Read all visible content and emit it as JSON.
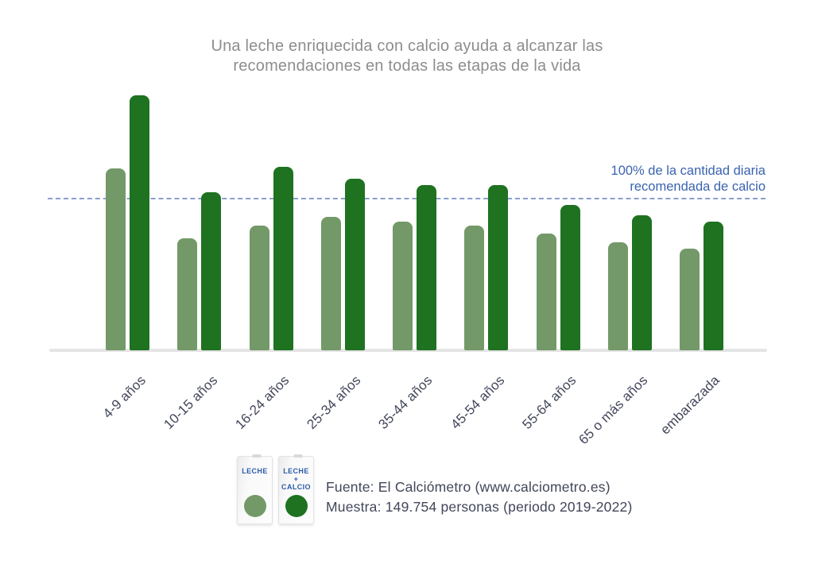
{
  "title": "Una leche enriquecida con calcio ayuda a alcanzar las recomendaciones en todas las etapas de la vida",
  "chart_data": {
    "type": "bar",
    "title": "Una leche enriquecida con calcio ayuda a alcanzar las recomendaciones en todas las etapas de la vida",
    "categories": [
      "4-9 años",
      "10-15 años",
      "16-24 años",
      "25-34 años",
      "35-44 años",
      "45-54 años",
      "55-64 años",
      "65 o más años",
      "embarazada"
    ],
    "series": [
      {
        "name": "Leche",
        "values": [
          120,
          74,
          82,
          88,
          85,
          82,
          77,
          71,
          67
        ]
      },
      {
        "name": "Leche + Calcio",
        "values": [
          168,
          104,
          121,
          113,
          109,
          109,
          96,
          89,
          85
        ]
      }
    ],
    "unit": "% de la cantidad diaria recomendada de calcio",
    "ylim": [
      0,
      175
    ],
    "grid": false,
    "legend_position": "bottom-left",
    "reference_line": {
      "value": 100,
      "label_lines": [
        "100% de la cantidad diaria",
        "recomendada de calcio"
      ]
    }
  },
  "legend": {
    "items": [
      {
        "series": "Leche",
        "carton_lines": [
          "LECHE"
        ]
      },
      {
        "series": "Leche + Calcio",
        "carton_lines": [
          "LECHE",
          "+",
          "CALCIO"
        ]
      }
    ]
  },
  "source": {
    "line1": "Fuente: El Calciómetro (www.calciometro.es)",
    "line2": "Muestra: 149.754 personas (periodo 2019-2022)"
  },
  "colors": {
    "leche": "#739968",
    "leche_calcio": "#1e7220",
    "reference_line": "#8095c9",
    "annotation_text": "#3a63b0",
    "title_text": "#8d8d8d",
    "axis_text": "#43465a",
    "baseline": "#e4e4e4",
    "carton_label": "#2b5ba7"
  }
}
